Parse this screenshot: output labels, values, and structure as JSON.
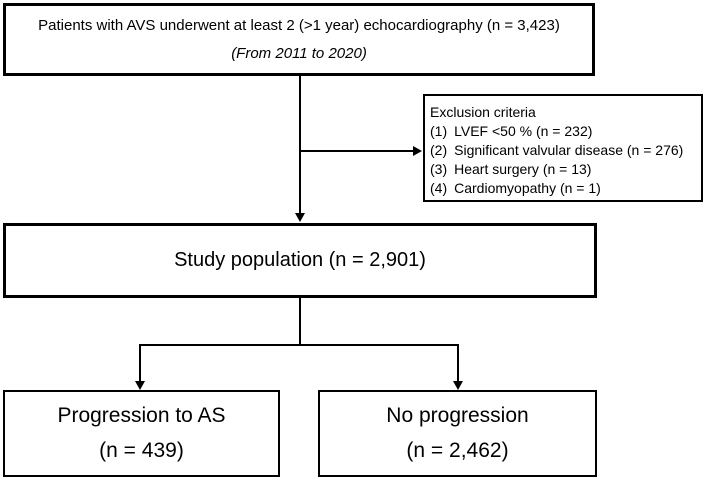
{
  "diagram": {
    "top_box": {
      "line1": "Patients with AVS underwent at least 2 (>1 year) echocardiography (n = 3,423)",
      "line2": "(From 2011 to 2020)"
    },
    "exclusion_box": {
      "title": "Exclusion criteria",
      "items": [
        {
          "num": "(1)",
          "label": "LVEF <50 % (n = 232)"
        },
        {
          "num": "(2)",
          "label": "Significant valvular disease (n = 276)"
        },
        {
          "num": "(3)",
          "label": "Heart surgery (n = 13)"
        },
        {
          "num": "(4)",
          "label": "Cardiomyopathy (n = 1)"
        }
      ]
    },
    "study_box": {
      "label": "Study population (n = 2,901)"
    },
    "progression_box": {
      "line1": "Progression to AS",
      "line2": "(n = 439)"
    },
    "no_progression_box": {
      "line1": "No progression",
      "line2": "(n = 2,462)"
    }
  },
  "colors": {
    "background": "#ffffff",
    "border": "#000000",
    "text": "#000000"
  }
}
